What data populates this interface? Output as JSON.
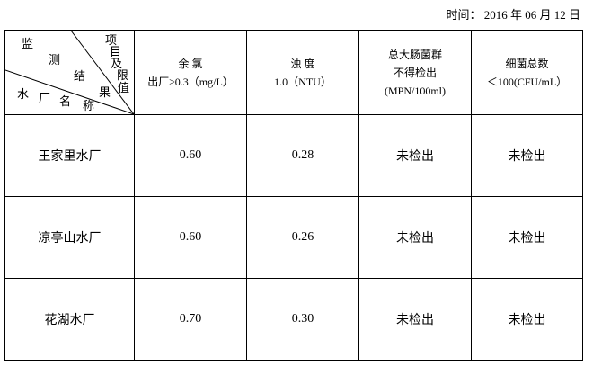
{
  "date": "时间：  2016 年 06 月 12 日",
  "corner": {
    "top": [
      "项",
      "目",
      "及",
      "限",
      "值"
    ],
    "mid": [
      "监",
      "测",
      "结",
      "果"
    ],
    "bottom": [
      "水",
      "厂",
      "名",
      "称"
    ]
  },
  "headers": [
    {
      "line1": "余 氯",
      "line2": "出厂≥0.3（mg/L）"
    },
    {
      "line1": "浊 度",
      "line2": "1.0（NTU）"
    },
    {
      "line1": "总大肠菌群",
      "line2": "不得检出",
      "line3": "(MPN/100ml)"
    },
    {
      "line1": "细菌总数",
      "line2": "＜100(CFU/mL）"
    }
  ],
  "rows": [
    {
      "name": "王家里水厂",
      "chlorine": "0.60",
      "turbidity": "0.28",
      "coliform": "未检出",
      "bacteria": "未检出"
    },
    {
      "name": "凉亭山水厂",
      "chlorine": "0.60",
      "turbidity": "0.26",
      "coliform": "未检出",
      "bacteria": "未检出"
    },
    {
      "name": "花湖水厂",
      "chlorine": "0.70",
      "turbidity": "0.30",
      "coliform": "未检出",
      "bacteria": "未检出"
    }
  ]
}
